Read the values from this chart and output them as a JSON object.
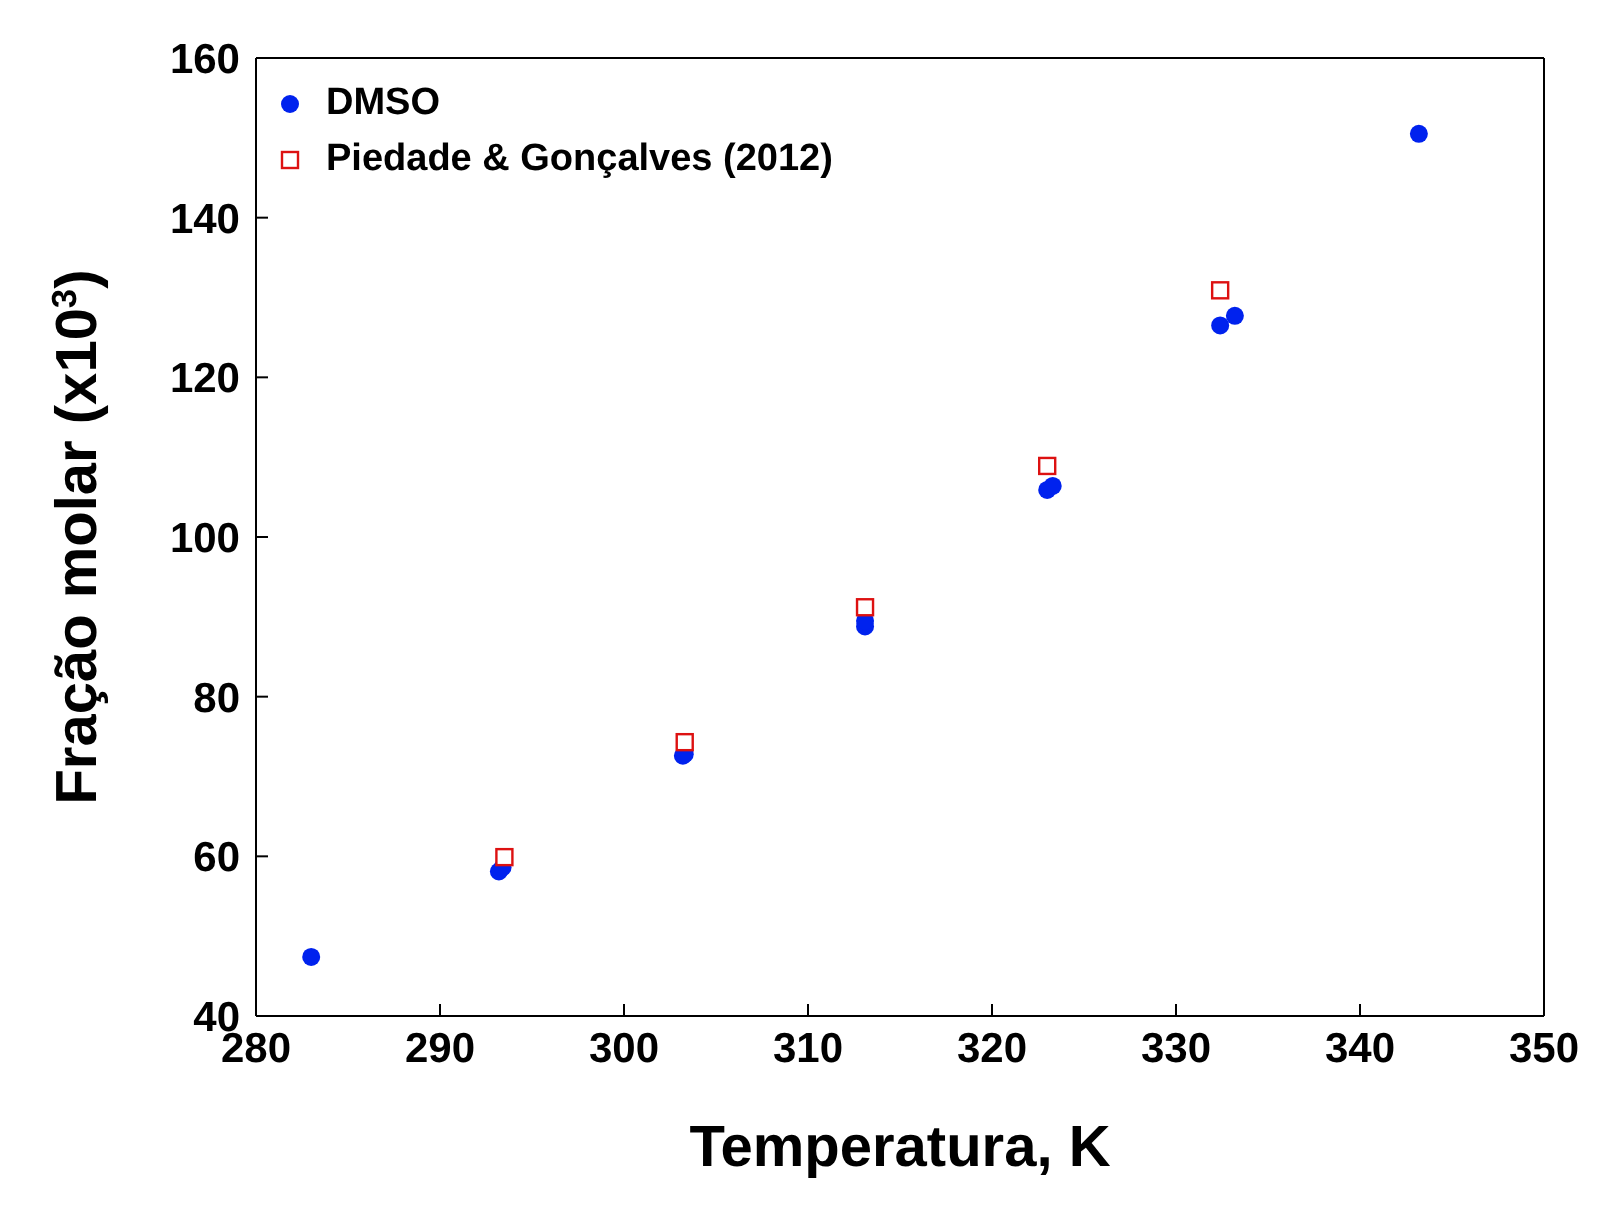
{
  "chart_data": {
    "type": "scatter",
    "xlabel": "Temperatura, K",
    "ylabel": "Fração molar (x10$^{3}$)",
    "xlim": [
      280,
      350
    ],
    "xticks": [
      280,
      290,
      300,
      310,
      320,
      330,
      340,
      350
    ],
    "ylim": [
      40,
      160
    ],
    "yticks": [
      40,
      60,
      80,
      100,
      120,
      140,
      160
    ],
    "legend": "top left",
    "series": [
      {
        "name": "DMSO",
        "color": "#0022ee",
        "marker": "circle",
        "x": [
          283,
          293.2,
          293.4,
          303.2,
          303.3,
          313.1,
          313.1,
          323,
          323.3,
          332.4,
          333.2,
          343.2
        ],
        "values": [
          47.4,
          58.1,
          58.6,
          72.6,
          72.8,
          88.8,
          89.5,
          105.9,
          106.4,
          126.5,
          127.7,
          150.5
        ]
      },
      {
        "name": "Piedade & Gonçalves (2012)",
        "color": "#dd1111",
        "marker": "square",
        "x": [
          293.5,
          303.3,
          313.1,
          323,
          332.4
        ],
        "values": [
          59.9,
          74.3,
          91.2,
          108.9,
          130.9
        ]
      }
    ]
  }
}
